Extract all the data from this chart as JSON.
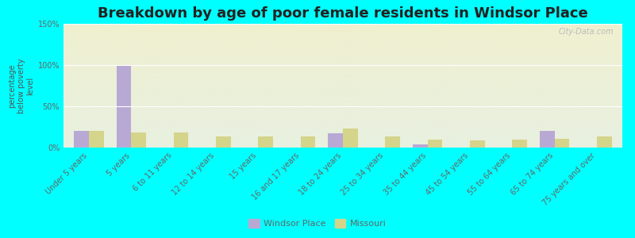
{
  "title": "Breakdown by age of poor female residents in Windsor Place",
  "ylabel": "percentage\nbelow poverty\nlevel",
  "categories": [
    "Under 5 years",
    "5 years",
    "6 to 11 years",
    "12 to 14 years",
    "15 years",
    "16 and 17 years",
    "18 to 24 years",
    "25 to 34 years",
    "35 to 44 years",
    "45 to 54 years",
    "55 to 64 years",
    "65 to 74 years",
    "75 years and over"
  ],
  "windsor_values": [
    20,
    100,
    0,
    0,
    0,
    0,
    17,
    0,
    4,
    0,
    0,
    20,
    0
  ],
  "missouri_values": [
    20,
    18,
    18,
    13,
    13,
    13,
    23,
    13,
    10,
    9,
    10,
    11,
    13
  ],
  "windsor_color": "#b8a9d4",
  "missouri_color": "#d4d48a",
  "ylim": [
    0,
    150
  ],
  "yticks": [
    0,
    50,
    100,
    150
  ],
  "ytick_labels": [
    "0%",
    "50%",
    "100%",
    "150%"
  ],
  "bar_width": 0.35,
  "bg_color": "#00ffff",
  "plot_bg_top": "#f0f0d0",
  "plot_bg_bottom": "#e8f0e0",
  "watermark": "City-Data.com",
  "title_fontsize": 13,
  "axis_label_fontsize": 7,
  "ylabel_fontsize": 7,
  "ytick_fontsize": 7,
  "legend_fontsize": 8
}
